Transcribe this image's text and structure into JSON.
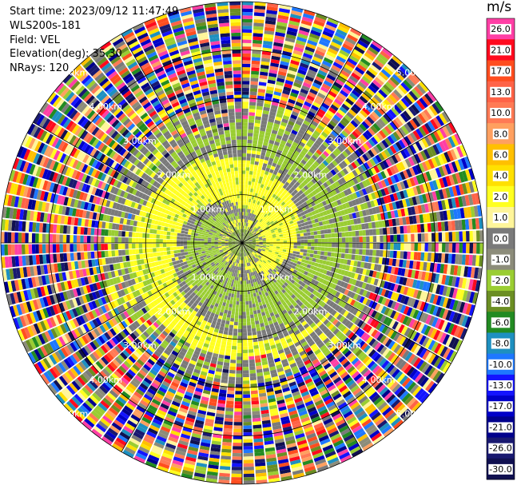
{
  "info": {
    "start_time": "Start time: 2023/09/12 11:47:49",
    "station": "WLS200s-181",
    "field": "Field: VEL",
    "elevation": "Elevation(deg): 35.30",
    "nrays": "NRays: 120"
  },
  "colorbar": {
    "unit": "m/s",
    "levels": [
      {
        "label": "26.0",
        "color": "#ff3fa5"
      },
      {
        "label": "21.0",
        "color": "#ff0a1e"
      },
      {
        "label": "17.0",
        "color": "#ff4d1f"
      },
      {
        "label": "13.0",
        "color": "#ff6347"
      },
      {
        "label": "10.0",
        "color": "#ff7a55"
      },
      {
        "label": "8.0",
        "color": "#ffa060"
      },
      {
        "label": "6.0",
        "color": "#ffc000"
      },
      {
        "label": "4.0",
        "color": "#ffe000"
      },
      {
        "label": "2.0",
        "color": "#ffff20"
      },
      {
        "label": "1.0",
        "color": "#fff59a"
      },
      {
        "label": "0.0",
        "color": "#7a7a7a"
      },
      {
        "label": "-1.0",
        "color": "#8c8c7a"
      },
      {
        "label": "-2.0",
        "color": "#9acd32"
      },
      {
        "label": "-4.0",
        "color": "#6b8e23"
      },
      {
        "label": "-6.0",
        "color": "#228b22"
      },
      {
        "label": "-8.0",
        "color": "#1e90c0"
      },
      {
        "label": "-10.0",
        "color": "#1e78ff"
      },
      {
        "label": "-13.0",
        "color": "#1414ff"
      },
      {
        "label": "-17.0",
        "color": "#0000c8"
      },
      {
        "label": "-21.0",
        "color": "#00008c"
      },
      {
        "label": "-26.0",
        "color": "#191970"
      },
      {
        "label": "-30.0",
        "color": "#101050"
      }
    ]
  },
  "chart_data": {
    "type": "heatmap",
    "title": "",
    "field": "VEL",
    "units": "m/s",
    "n_rays": 120,
    "elevation_deg": 35.3,
    "range_rings_km": [
      1.0,
      2.0,
      3.0,
      4.0,
      5.0
    ],
    "ring_labels": [
      {
        "text": "1.00km",
        "ring_km": 1.0
      },
      {
        "text": "1.00km",
        "ring_km": 1.0
      },
      {
        "text": "1.00km",
        "ring_km": 1.0
      },
      {
        "text": "1.00km",
        "ring_km": 1.0
      },
      {
        "text": "2.00km",
        "ring_km": 2.0
      },
      {
        "text": "2.00km",
        "ring_km": 2.0
      },
      {
        "text": "2.00km",
        "ring_km": 2.0
      },
      {
        "text": "2.00km",
        "ring_km": 2.0
      },
      {
        "text": "3.00km",
        "ring_km": 3.0
      },
      {
        "text": "3.00km",
        "ring_km": 3.0
      },
      {
        "text": "3.00km",
        "ring_km": 3.0
      },
      {
        "text": "3.00km",
        "ring_km": 3.0
      },
      {
        "text": "4.00km",
        "ring_km": 4.0
      },
      {
        "text": "4.00km",
        "ring_km": 4.0
      },
      {
        "text": "4.00km",
        "ring_km": 4.0
      },
      {
        "text": "4.00km",
        "ring_km": 4.0
      },
      {
        "text": "5.00km",
        "ring_km": 5.0
      },
      {
        "text": "5.00km",
        "ring_km": 5.0
      },
      {
        "text": "5.00km",
        "ring_km": 5.0
      },
      {
        "text": "5.00km",
        "ring_km": 5.0
      }
    ],
    "max_range_km": 5.0,
    "grid": true
  }
}
